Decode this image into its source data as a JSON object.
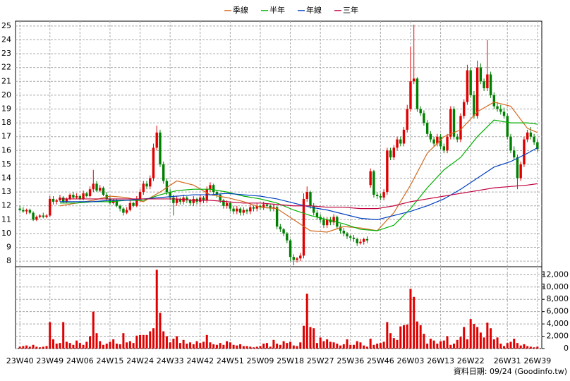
{
  "chart_data": {
    "type": "candlestick",
    "open": [
      11.8,
      11.7,
      11.6,
      11.7,
      11.5,
      11.0,
      11.2,
      11.3,
      11.2,
      11.3,
      12.5,
      12.3,
      12.4,
      12.6,
      12.3,
      12.5,
      12.8,
      12.6,
      12.7,
      12.5,
      12.9,
      12.7,
      13.2,
      13.6,
      13.1,
      13.3,
      12.8,
      12.5,
      12.2,
      12.4,
      12.0,
      11.8,
      11.5,
      11.7,
      12.2,
      12.0,
      12.5,
      13.0,
      13.6,
      13.4,
      14.0,
      16.2,
      17.3,
      15.0,
      13.8,
      13.0,
      12.6,
      12.2,
      12.5,
      12.3,
      12.6,
      12.4,
      12.2,
      12.5,
      12.3,
      12.6,
      12.4,
      13.2,
      13.5,
      13.0,
      12.8,
      12.4,
      12.0,
      12.2,
      11.8,
      11.6,
      11.8,
      11.5,
      11.7,
      11.6,
      11.9,
      11.8,
      12.0,
      11.9,
      12.1,
      12.0,
      11.8,
      11.9,
      10.5,
      10.3,
      10.0,
      9.5,
      8.3,
      8.1,
      8.2,
      8.4,
      12.5,
      13.0,
      12.0,
      11.5,
      11.2,
      11.0,
      10.6,
      11.0,
      10.8,
      11.2,
      10.5,
      10.2,
      10.0,
      9.8,
      9.7,
      9.6,
      9.3,
      9.4,
      9.6,
      13.5,
      14.5,
      12.8,
      12.7,
      12.6,
      13.0,
      16.0,
      15.5,
      16.2,
      16.8,
      16.5,
      17.5,
      19.0,
      21.0,
      21.2,
      19.0,
      18.7,
      18.0,
      17.2,
      16.8,
      16.5,
      17.0,
      16.3,
      16.0,
      17.0,
      19.0,
      17.0,
      16.8,
      18.5,
      19.5,
      21.8,
      20.0,
      18.5,
      22.0,
      21.0,
      20.5,
      21.5,
      20.0,
      19.2,
      19.0,
      18.8,
      18.5,
      17.0,
      16.0,
      15.5,
      14.0,
      15.0,
      16.8,
      17.3,
      17.0,
      16.6
    ],
    "high": [
      12.0,
      11.9,
      11.8,
      11.8,
      11.6,
      11.3,
      11.4,
      11.5,
      11.4,
      12.7,
      12.7,
      12.5,
      12.8,
      12.7,
      12.6,
      12.9,
      13.0,
      12.9,
      12.8,
      13.1,
      13.0,
      13.4,
      14.6,
      13.8,
      13.5,
      13.4,
      13.0,
      12.7,
      12.5,
      12.5,
      12.1,
      11.9,
      11.9,
      12.4,
      12.3,
      12.7,
      13.2,
      13.8,
      13.8,
      14.2,
      16.5,
      17.8,
      17.5,
      15.2,
      14.0,
      13.2,
      12.8,
      12.7,
      12.6,
      12.8,
      12.7,
      12.5,
      12.7,
      12.6,
      12.8,
      12.7,
      13.4,
      13.7,
      13.6,
      13.1,
      12.9,
      12.5,
      12.4,
      12.3,
      12.0,
      12.0,
      11.9,
      11.9,
      11.8,
      12.1,
      12.0,
      12.2,
      12.1,
      12.3,
      12.2,
      12.1,
      12.1,
      12.0,
      10.7,
      10.4,
      10.1,
      9.6,
      8.5,
      8.3,
      8.6,
      12.9,
      13.4,
      13.1,
      12.2,
      11.7,
      11.4,
      11.2,
      11.2,
      11.2,
      11.4,
      11.3,
      10.7,
      10.4,
      10.1,
      9.9,
      9.9,
      9.7,
      9.6,
      9.7,
      9.8,
      14.7,
      14.6,
      13.0,
      12.9,
      13.2,
      16.2,
      16.2,
      16.4,
      17.0,
      17.0,
      17.7,
      19.3,
      23.5,
      25.1,
      21.3,
      19.2,
      18.9,
      18.2,
      17.4,
      17.0,
      17.2,
      17.2,
      16.5,
      17.2,
      19.2,
      19.2,
      17.2,
      18.7,
      19.7,
      22.2,
      22.0,
      20.3,
      22.5,
      22.3,
      21.2,
      24.0,
      21.7,
      20.2,
      19.5,
      19.3,
      19.1,
      18.7,
      17.2,
      16.3,
      15.7,
      15.2,
      17.0,
      17.5,
      17.7,
      17.2,
      16.8
    ],
    "low": [
      11.6,
      11.5,
      11.4,
      11.4,
      10.9,
      10.9,
      11.1,
      11.1,
      11.1,
      11.2,
      12.1,
      12.1,
      12.3,
      12.2,
      12.2,
      12.4,
      12.5,
      12.5,
      12.4,
      12.4,
      12.6,
      12.6,
      13.0,
      13.0,
      13.0,
      12.7,
      12.4,
      12.1,
      12.1,
      11.9,
      11.6,
      11.3,
      11.4,
      11.6,
      11.9,
      11.9,
      12.3,
      12.8,
      13.2,
      13.2,
      13.8,
      16.0,
      14.8,
      13.6,
      12.8,
      12.4,
      11.3,
      12.0,
      12.1,
      12.1,
      12.2,
      12.0,
      12.0,
      12.1,
      12.1,
      12.2,
      12.2,
      13.0,
      12.8,
      12.6,
      12.2,
      11.8,
      11.8,
      11.6,
      11.4,
      11.4,
      11.3,
      11.3,
      11.4,
      11.4,
      11.6,
      11.6,
      11.7,
      11.7,
      11.8,
      11.6,
      11.6,
      10.3,
      10.1,
      9.8,
      9.3,
      8.0,
      7.7,
      7.9,
      8.0,
      8.2,
      12.3,
      11.8,
      11.3,
      11.0,
      10.8,
      10.4,
      10.4,
      10.6,
      10.6,
      10.3,
      10.0,
      9.8,
      9.6,
      9.5,
      9.4,
      9.1,
      9.2,
      9.2,
      9.3,
      13.3,
      12.6,
      12.5,
      12.4,
      12.4,
      12.8,
      15.3,
      15.3,
      16.0,
      16.3,
      16.3,
      17.3,
      18.8,
      20.8,
      18.8,
      18.5,
      17.8,
      17.0,
      16.6,
      16.3,
      16.3,
      16.1,
      15.8,
      15.8,
      16.8,
      16.8,
      16.6,
      16.6,
      18.3,
      19.3,
      19.8,
      18.3,
      18.3,
      20.8,
      20.3,
      20.3,
      19.8,
      19.0,
      18.8,
      18.6,
      18.3,
      16.8,
      15.8,
      15.3,
      13.2,
      13.8,
      14.8,
      16.6,
      16.8,
      16.4,
      15.9
    ],
    "close": [
      11.7,
      11.6,
      11.7,
      11.5,
      11.0,
      11.2,
      11.3,
      11.2,
      11.3,
      12.5,
      12.3,
      12.4,
      12.6,
      12.3,
      12.5,
      12.8,
      12.6,
      12.7,
      12.5,
      12.9,
      12.7,
      13.2,
      13.6,
      13.1,
      13.3,
      12.8,
      12.5,
      12.2,
      12.4,
      12.0,
      11.8,
      11.5,
      11.7,
      12.2,
      12.0,
      12.5,
      13.0,
      13.6,
      13.4,
      14.0,
      16.2,
      17.3,
      15.0,
      13.8,
      13.0,
      12.6,
      12.2,
      12.5,
      12.3,
      12.6,
      12.4,
      12.2,
      12.5,
      12.3,
      12.6,
      12.4,
      13.2,
      13.5,
      13.0,
      12.8,
      12.4,
      12.0,
      12.2,
      11.8,
      11.6,
      11.8,
      11.5,
      11.7,
      11.6,
      11.9,
      11.8,
      12.0,
      11.9,
      12.1,
      12.0,
      11.8,
      11.9,
      10.5,
      10.3,
      10.0,
      9.5,
      8.3,
      8.1,
      8.2,
      8.4,
      12.5,
      13.0,
      12.0,
      11.5,
      11.2,
      11.0,
      10.6,
      11.0,
      10.8,
      11.2,
      10.5,
      10.2,
      10.0,
      9.8,
      9.7,
      9.6,
      9.3,
      9.4,
      9.6,
      9.5,
      14.5,
      12.8,
      12.7,
      12.6,
      13.0,
      16.0,
      15.5,
      16.2,
      16.8,
      16.5,
      17.5,
      19.0,
      21.0,
      21.2,
      19.0,
      18.7,
      18.0,
      17.2,
      16.8,
      16.5,
      17.0,
      16.3,
      16.0,
      17.0,
      19.0,
      17.0,
      16.8,
      18.5,
      19.5,
      21.8,
      20.0,
      18.5,
      22.0,
      21.0,
      20.5,
      21.5,
      20.0,
      19.2,
      19.0,
      18.8,
      18.5,
      17.0,
      16.0,
      15.5,
      14.0,
      15.0,
      16.8,
      17.3,
      17.0,
      16.6,
      16.1
    ],
    "up_color": "#e00000",
    "down_color": "#008000",
    "xlim": [
      -1.3,
      156.3
    ],
    "xticks": [
      {
        "value": 0,
        "label": "23W40"
      },
      {
        "value": 9,
        "label": "23W49"
      },
      {
        "value": 18,
        "label": "24W06"
      },
      {
        "value": 27,
        "label": "24W15"
      },
      {
        "value": 36,
        "label": "24W24"
      },
      {
        "value": 45,
        "label": "24W33"
      },
      {
        "value": 54,
        "label": "24W42"
      },
      {
        "value": 63,
        "label": "24W51"
      },
      {
        "value": 72,
        "label": "25W09"
      },
      {
        "value": 81,
        "label": "25W18"
      },
      {
        "value": 90,
        "label": "25W27"
      },
      {
        "value": 99,
        "label": "25W36"
      },
      {
        "value": 108,
        "label": "25W46"
      },
      {
        "value": 117,
        "label": "26W03"
      },
      {
        "value": 126,
        "label": "26W13"
      },
      {
        "value": 135,
        "label": "26W22"
      },
      {
        "value": 146,
        "label": "26W31"
      },
      {
        "value": 155,
        "label": "26W39"
      }
    ],
    "ylim": [
      7.6,
      25.35
    ],
    "yticks": [
      8,
      9,
      10,
      11,
      12,
      13,
      14,
      15,
      16,
      17,
      18,
      19,
      20,
      21,
      22,
      23,
      24,
      25
    ],
    "grid": true,
    "ma": {
      "x": [
        12,
        17,
        22,
        27,
        32,
        37,
        42,
        47,
        52,
        57,
        62,
        67,
        72,
        77,
        82,
        87,
        92,
        97,
        102,
        107,
        112,
        117,
        122,
        127,
        132,
        137,
        142,
        147,
        152,
        155
      ],
      "series": [
        {
          "name": "季線",
          "color": "#d2691e",
          "values": [
            12.0,
            12.2,
            12.4,
            12.7,
            12.6,
            12.3,
            13.0,
            13.8,
            13.5,
            12.8,
            12.6,
            12.3,
            11.9,
            11.8,
            11.0,
            10.2,
            10.1,
            10.5,
            10.4,
            10.2,
            11.5,
            13.5,
            15.8,
            17.0,
            17.5,
            18.8,
            19.5,
            19.2,
            17.6,
            17.3
          ]
        },
        {
          "name": "半年",
          "color": "#00b000",
          "values": [
            12.2,
            12.2,
            12.3,
            12.3,
            12.4,
            12.4,
            12.8,
            13.1,
            13.2,
            13.2,
            13.0,
            12.7,
            12.5,
            12.2,
            11.7,
            11.3,
            11.0,
            10.7,
            10.3,
            10.2,
            10.6,
            11.8,
            13.3,
            14.6,
            15.5,
            17.0,
            18.2,
            18.0,
            18.0,
            17.9
          ]
        },
        {
          "name": "年線",
          "color": "#0040c0",
          "values": [
            12.3,
            12.3,
            12.3,
            12.4,
            12.4,
            12.5,
            12.6,
            12.7,
            12.8,
            12.8,
            12.9,
            12.8,
            12.7,
            12.5,
            12.2,
            11.9,
            11.7,
            11.4,
            11.1,
            11.0,
            11.3,
            11.6,
            12.0,
            12.5,
            13.2,
            14.0,
            14.8,
            15.2,
            15.8,
            16.2
          ]
        },
        {
          "name": "三年",
          "color": "#c0003c",
          "values": [
            12.5,
            12.5,
            12.5,
            12.5,
            12.5,
            12.5,
            12.5,
            12.5,
            12.4,
            12.4,
            12.3,
            12.2,
            12.2,
            12.1,
            12.0,
            12.0,
            11.9,
            11.9,
            11.8,
            11.8,
            12.0,
            12.3,
            12.5,
            12.7,
            12.9,
            13.1,
            13.3,
            13.4,
            13.5,
            13.6
          ]
        }
      ]
    },
    "volume": {
      "color": "#e00000",
      "values": [
        300,
        400,
        500,
        300,
        600,
        300,
        200,
        300,
        400,
        4300,
        1500,
        800,
        900,
        4300,
        1100,
        900,
        600,
        1300,
        900,
        600,
        1100,
        2000,
        6000,
        2500,
        1200,
        600,
        800,
        1100,
        1500,
        800,
        700,
        2500,
        1000,
        1200,
        900,
        2100,
        2200,
        2200,
        2200,
        2800,
        3300,
        12800,
        5800,
        2800,
        2000,
        1000,
        1600,
        2000,
        900,
        1400,
        800,
        1000,
        700,
        1200,
        900,
        1100,
        2200,
        1000,
        700,
        600,
        900,
        600,
        1200,
        1000,
        600,
        500,
        700,
        400,
        400,
        300,
        200,
        300,
        400,
        800,
        900,
        300,
        1400,
        800,
        600,
        1200,
        900,
        1100,
        500,
        400,
        1000,
        3700,
        8900,
        3500,
        3300,
        900,
        1800,
        1200,
        1500,
        1100,
        1000,
        800,
        500,
        700,
        1500,
        600,
        600,
        1200,
        1000,
        500,
        300,
        1600,
        600,
        800,
        900,
        1100,
        4300,
        2500,
        1700,
        1400,
        3600,
        3800,
        3900,
        9700,
        8400,
        4400,
        3800,
        2400,
        800,
        1600,
        1300,
        800,
        1200,
        1300,
        2000,
        600,
        800,
        1400,
        1900,
        3500,
        1500,
        4800,
        4000,
        3500,
        2600,
        1800,
        4200,
        3300,
        1500,
        1800,
        800,
        400,
        900,
        1100,
        1600,
        900,
        500,
        700,
        400,
        300,
        200,
        300
      ],
      "ylim": [
        0,
        13300
      ],
      "yticks": [
        0,
        {
          "value": 2000,
          "label": "2,000"
        },
        {
          "value": 4000,
          "label": "4,000"
        },
        {
          "value": 6000,
          "label": "6,000"
        },
        {
          "value": 8000,
          "label": "8,000"
        },
        {
          "value": 10000,
          "label": "10,000"
        },
        {
          "value": 12000,
          "label": "12,000"
        }
      ]
    },
    "footnote": "資料日期: 09/24 (Goodinfo.tw)"
  }
}
